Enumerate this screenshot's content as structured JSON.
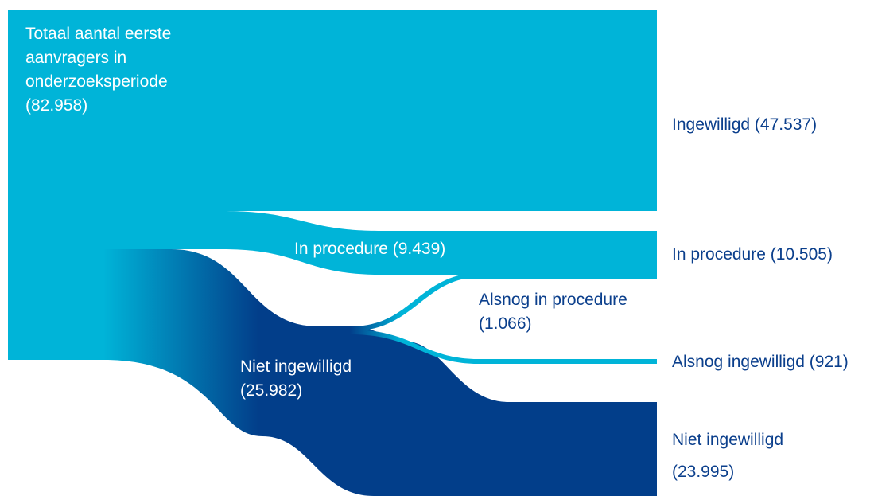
{
  "colors": {
    "light_blue": "#00b4d8",
    "dark_blue": "#023e8a",
    "label_dark": "#0b3f8c",
    "label_light": "#ffffff"
  },
  "chart_data": {
    "type": "sankey",
    "unit": "aanvragers",
    "nodes": [
      {
        "id": "totaal",
        "label": "Totaal aantal eerste aanvragers in onderzoeksperiode (82.958)",
        "value": 82958
      },
      {
        "id": "ingewilligd",
        "label": "Ingewilligd (47.537)",
        "value": 47537
      },
      {
        "id": "in_procedure_mid",
        "label": "In procedure (9.439)",
        "value": 9439
      },
      {
        "id": "niet_ingewilligd_mid",
        "label": "Niet ingewilligd (25.982)",
        "value": 25982
      },
      {
        "id": "alsnog_in_procedure",
        "label": "Alsnog in procedure (1.066)",
        "value": 1066
      },
      {
        "id": "in_procedure_final",
        "label": "In procedure (10.505)",
        "value": 10505
      },
      {
        "id": "alsnog_ingewilligd",
        "label": "Alsnog ingewilligd (921)",
        "value": 921
      },
      {
        "id": "niet_ingewilligd_final",
        "label": "Niet ingewilligd (23.995)",
        "value": 23995
      }
    ],
    "links": [
      {
        "source": "totaal",
        "target": "ingewilligd",
        "value": 47537
      },
      {
        "source": "totaal",
        "target": "in_procedure_mid",
        "value": 9439
      },
      {
        "source": "totaal",
        "target": "niet_ingewilligd_mid",
        "value": 25982
      },
      {
        "source": "in_procedure_mid",
        "target": "in_procedure_final",
        "value": 9439
      },
      {
        "source": "niet_ingewilligd_mid",
        "target": "alsnog_in_procedure",
        "value": 1066
      },
      {
        "source": "alsnog_in_procedure",
        "target": "in_procedure_final",
        "value": 1066
      },
      {
        "source": "niet_ingewilligd_mid",
        "target": "alsnog_ingewilligd",
        "value": 921
      },
      {
        "source": "niet_ingewilligd_mid",
        "target": "niet_ingewilligd_final",
        "value": 23995
      }
    ]
  },
  "labels": {
    "totaal": "Totaal aantal eerste aanvragers in onderzoeksperiode (82.958)",
    "ingewilligd": "Ingewilligd (47.537)",
    "in_procedure_mid": "In procedure (9.439)",
    "in_procedure_final": "In procedure (10.505)",
    "alsnog_in_procedure": "Alsnog in procedure (1.066)",
    "alsnog_ingewilligd": "Alsnog ingewilligd (921)",
    "niet_ingewilligd_mid": "Niet ingewilligd (25.982)",
    "niet_ingewilligd_final": "Niet ingewilligd (23.995)"
  }
}
